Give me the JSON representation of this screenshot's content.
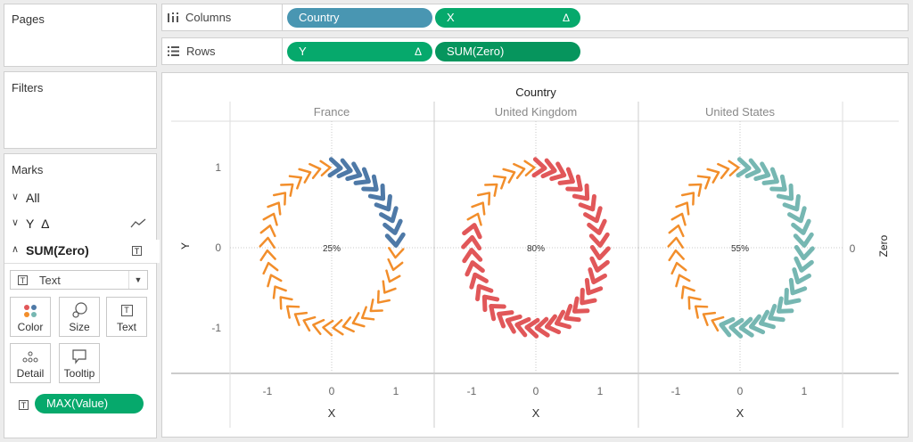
{
  "panels": {
    "pages": "Pages",
    "filters": "Filters",
    "marks": "Marks"
  },
  "columns_shelf": {
    "label": "Columns",
    "pills": [
      {
        "label": "Country",
        "color": "#4996b2"
      },
      {
        "label": "X",
        "color": "#06a96c",
        "delta": "Δ"
      }
    ]
  },
  "rows_shelf": {
    "label": "Rows",
    "pills": [
      {
        "label": "Y",
        "color": "#06a96c",
        "delta": "Δ"
      },
      {
        "label": "SUM(Zero)",
        "color": "#06955d"
      }
    ]
  },
  "marks": {
    "layers": [
      {
        "label": "All"
      },
      {
        "label": "Y",
        "delta": "Δ"
      },
      {
        "label": "SUM(Zero)"
      }
    ],
    "mark_type": "Text",
    "buttons": [
      {
        "label": "Color",
        "icon": "color-icon"
      },
      {
        "label": "Size",
        "icon": "size-icon"
      },
      {
        "label": "Text",
        "icon": "text-icon"
      },
      {
        "label": "Detail",
        "icon": "detail-icon"
      },
      {
        "label": "Tooltip",
        "icon": "tooltip-icon"
      }
    ],
    "text_field": "MAX(Value)"
  },
  "view": {
    "header_title": "Country",
    "y_axis_title": "Y",
    "x_axis_title": "X",
    "right_axis_title": "Zero",
    "right_axis_tick": "0",
    "x_ticks": [
      "-1",
      "0",
      "1"
    ],
    "y_ticks": [
      "1",
      "0",
      "-1"
    ]
  },
  "chart_data": {
    "type": "scatter",
    "categories": [
      "France",
      "United Kingdom",
      "United States"
    ],
    "values": [
      25,
      80,
      55
    ],
    "value_labels": [
      "25%",
      "80%",
      "55%"
    ],
    "colors": {
      "France": "#4e79a7",
      "United Kingdom": "#e15759",
      "United States": "#76b7b2",
      "remaining": "#f28e2b"
    },
    "xlabel": "X",
    "ylabel": "Y",
    "xlim": [
      -1.5,
      1.5
    ],
    "ylim": [
      -1.5,
      1.5
    ]
  }
}
